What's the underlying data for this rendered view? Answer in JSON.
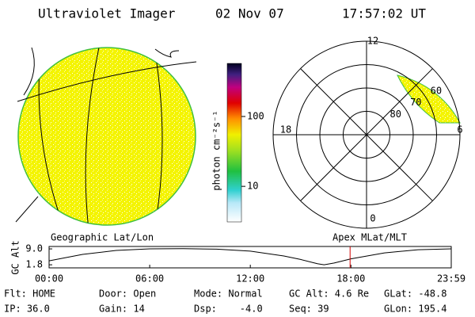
{
  "header": {
    "title": "Ultraviolet Imager",
    "date": "02 Nov 07",
    "time": "17:57:02 UT"
  },
  "colorbar": {
    "label": "photon cm⁻²s⁻¹",
    "log": true,
    "lim": [
      3.1,
      575
    ],
    "ticks": [
      10,
      100
    ]
  },
  "polar": {
    "lat_range": [
      90,
      50
    ],
    "ring_labels": [
      80,
      70,
      60
    ],
    "hour_labels": [
      12,
      18,
      6,
      0
    ]
  },
  "panel_labels": {
    "left": "Geographic Lat/Lon",
    "right": "Apex MLat/MLT"
  },
  "altitude": {
    "ylabel": "GC Alt",
    "ylim": [
      0.4,
      10.1
    ],
    "yticks": [
      {
        "value": 9.0,
        "label": "9.0"
      },
      {
        "value": 1.8,
        "label": "1.8"
      }
    ],
    "xlim": [
      0,
      23.983
    ],
    "xticks": [
      {
        "value": 0,
        "label": "00:00"
      },
      {
        "value": 6,
        "label": "06:00"
      },
      {
        "value": 12,
        "label": "12:00"
      },
      {
        "value": 18,
        "label": "18:00"
      },
      {
        "value": 23.983,
        "label": "23:59"
      }
    ],
    "x": [
      0,
      2,
      4,
      6,
      8,
      10,
      12,
      14,
      15,
      16,
      16.4,
      17,
      18,
      20,
      22,
      23.983
    ],
    "values": [
      3.6,
      6.5,
      8.3,
      9.0,
      9.1,
      8.9,
      8.0,
      5.8,
      4.2,
      2.3,
      1.8,
      2.6,
      4.5,
      7.2,
      8.6,
      9.0
    ],
    "marker": 17.95
  },
  "info": [
    "Flt: HOME",
    "Door: Open",
    "Mode: Normal",
    "GC Alt: 4.6 Re",
    "GLat: -48.8",
    "IP: 36.0",
    "Gain: 14",
    "Dsp:    -4.0",
    "Seq: 39",
    "GLon: 195.4"
  ]
}
